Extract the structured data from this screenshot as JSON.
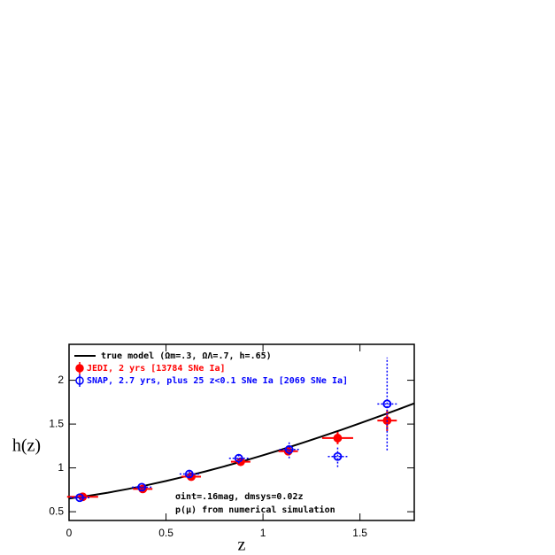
{
  "chart_data": {
    "type": "scatter",
    "x_label": "z",
    "y_label": "h(z)",
    "xlim": [
      0,
      1.78
    ],
    "ylim": [
      0.4,
      2.41
    ],
    "xticks": [
      0,
      0.5,
      1,
      1.5
    ],
    "yticks": [
      0.5,
      1,
      1.5,
      2
    ],
    "annotations": [
      "σint=.16mag, dmsys=0.02z",
      "p(μ) from numerical simulation"
    ],
    "model": {
      "name": "true model (Ωm=.3, ΩΛ=.7, h=.65)",
      "color": "#000000",
      "x": [
        0,
        0.1,
        0.2,
        0.3,
        0.4,
        0.5,
        0.6,
        0.7,
        0.8,
        0.9,
        1.0,
        1.1,
        1.2,
        1.3,
        1.4,
        1.5,
        1.6,
        1.7,
        1.78
      ],
      "values": [
        0.65,
        0.682,
        0.717,
        0.758,
        0.802,
        0.851,
        0.903,
        0.958,
        1.017,
        1.079,
        1.144,
        1.212,
        1.283,
        1.356,
        1.431,
        1.509,
        1.589,
        1.67,
        1.737
      ]
    },
    "series": [
      {
        "name": "JEDI, 2 yrs [13784 SNe Ia]",
        "color": "#ff0000",
        "filled": true,
        "x": [
          0.07,
          0.38,
          0.63,
          0.885,
          1.13,
          1.385,
          1.64
        ],
        "values": [
          0.67,
          0.76,
          0.9,
          1.07,
          1.19,
          1.34,
          1.54
        ],
        "xerr": [
          0.08,
          0.05,
          0.05,
          0.05,
          0.05,
          0.08,
          0.05
        ],
        "yerr": [
          0.02,
          0.02,
          0.02,
          0.03,
          0.04,
          0.07,
          0.12
        ]
      },
      {
        "name": "SNAP, 2.7 yrs, plus 25 z<0.1 SNe Ia [2069 SNe Ia]",
        "color": "#0000ff",
        "filled": false,
        "x": [
          0.055,
          0.375,
          0.62,
          0.875,
          1.135,
          1.385,
          1.64
        ],
        "values": [
          0.66,
          0.78,
          0.93,
          1.11,
          1.21,
          1.13,
          1.73
        ],
        "xerr": [
          0.05,
          0.05,
          0.05,
          0.05,
          0.05,
          0.05,
          0.05
        ],
        "yerr": [
          0.02,
          0.02,
          0.03,
          0.06,
          0.1,
          0.12,
          0.53
        ]
      }
    ]
  }
}
